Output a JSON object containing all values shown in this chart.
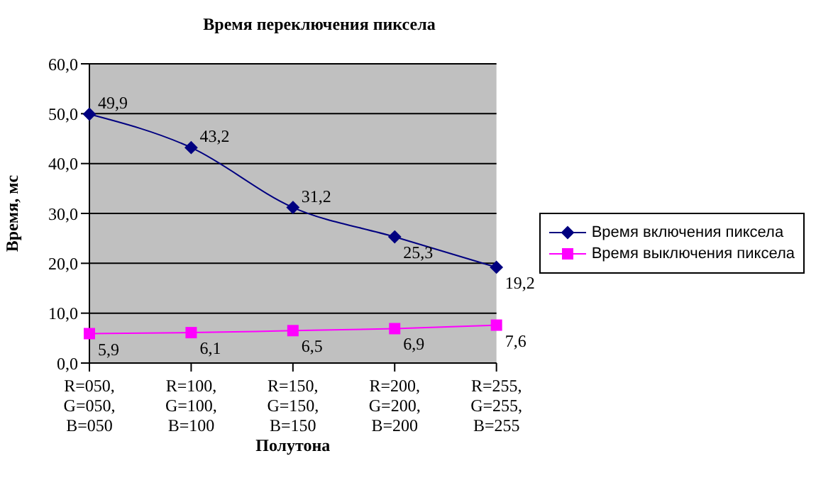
{
  "chart_data": {
    "type": "line",
    "title": "Время переключения пиксела",
    "xlabel": "Полутона",
    "ylabel": "Время, мс",
    "categories": [
      "R=050, G=050, B=050",
      "R=100, G=100, B=100",
      "R=150, G=150, B=150",
      "R=200, G=200, B=200",
      "R=255, G=255, B=255"
    ],
    "series": [
      {
        "name": "Время включения пиксела",
        "color": "#000080",
        "marker": "diamond",
        "values": [
          49.9,
          43.2,
          31.2,
          25.3,
          19.2
        ],
        "value_labels": [
          "49,9",
          "43,2",
          "31,2",
          "25,3",
          "19,2"
        ]
      },
      {
        "name": "Время выключения пиксела",
        "color": "#ff00ff",
        "marker": "square",
        "values": [
          5.9,
          6.1,
          6.5,
          6.9,
          7.6
        ],
        "value_labels": [
          "5,9",
          "6,1",
          "6,5",
          "6,9",
          "7,6"
        ]
      }
    ],
    "ylim": [
      0,
      60
    ],
    "yticks": [
      {
        "value": 0,
        "label": "0,0"
      },
      {
        "value": 10,
        "label": "10,0"
      },
      {
        "value": 20,
        "label": "20,0"
      },
      {
        "value": 30,
        "label": "30,0"
      },
      {
        "value": 40,
        "label": "40,0"
      },
      {
        "value": 50,
        "label": "50,0"
      },
      {
        "value": 60,
        "label": "60,0"
      }
    ],
    "grid": "y",
    "legend": "right"
  }
}
